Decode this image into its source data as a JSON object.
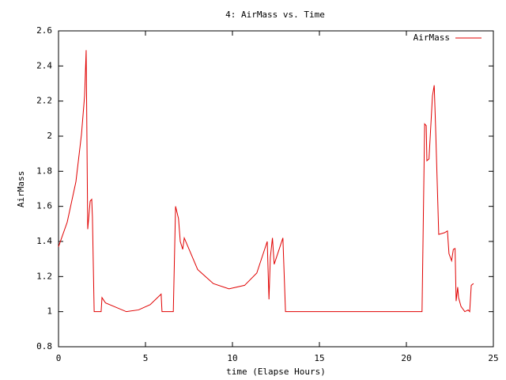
{
  "chart_data": {
    "type": "line",
    "title": "4: AirMass vs. Time",
    "x_label": "time (Elapse Hours)",
    "y_label": "AirMass",
    "x": [
      0,
      0.5,
      1.0,
      1.32,
      1.5,
      1.59,
      1.68,
      1.82,
      1.91,
      1.95,
      2.05,
      2.45,
      2.5,
      2.7,
      3.9,
      4.6,
      5.27,
      5.9,
      5.95,
      6.6,
      6.73,
      6.9,
      7.0,
      7.14,
      7.23,
      8.0,
      8.9,
      9.8,
      10.7,
      11.4,
      12.0,
      12.1,
      12.18,
      12.3,
      12.4,
      12.9,
      13.05,
      20.9,
      21.05,
      21.14,
      21.18,
      21.3,
      21.5,
      21.6,
      21.68,
      21.86,
      22.2,
      22.36,
      22.45,
      22.6,
      22.7,
      22.8,
      22.86,
      22.95,
      23.0,
      23.14,
      23.36,
      23.55,
      23.64,
      23.73,
      23.86
    ],
    "series": [
      {
        "name": "AirMass",
        "color": "#e00000",
        "values": [
          1.37,
          1.51,
          1.74,
          2.01,
          2.23,
          2.49,
          1.47,
          1.63,
          1.64,
          1.54,
          1.0,
          1.0,
          1.08,
          1.05,
          1.0,
          1.01,
          1.04,
          1.1,
          1.0,
          1.0,
          1.6,
          1.53,
          1.4,
          1.355,
          1.42,
          1.24,
          1.16,
          1.13,
          1.15,
          1.22,
          1.4,
          1.07,
          1.31,
          1.42,
          1.27,
          1.42,
          1.0,
          1.0,
          2.07,
          2.06,
          1.86,
          1.87,
          2.23,
          2.29,
          2.05,
          1.44,
          1.45,
          1.46,
          1.33,
          1.29,
          1.355,
          1.36,
          1.06,
          1.14,
          1.08,
          1.03,
          1.0,
          1.01,
          1.0,
          1.15,
          1.16
        ]
      }
    ],
    "xlim": [
      0,
      25
    ],
    "xticks": [
      0,
      5,
      10,
      15,
      20,
      25
    ],
    "ylim": [
      0.8,
      2.6
    ],
    "yticks": [
      0.8,
      1,
      1.2,
      1.4,
      1.6,
      1.8,
      2,
      2.2,
      2.4,
      2.6
    ],
    "legend": "top-right"
  }
}
